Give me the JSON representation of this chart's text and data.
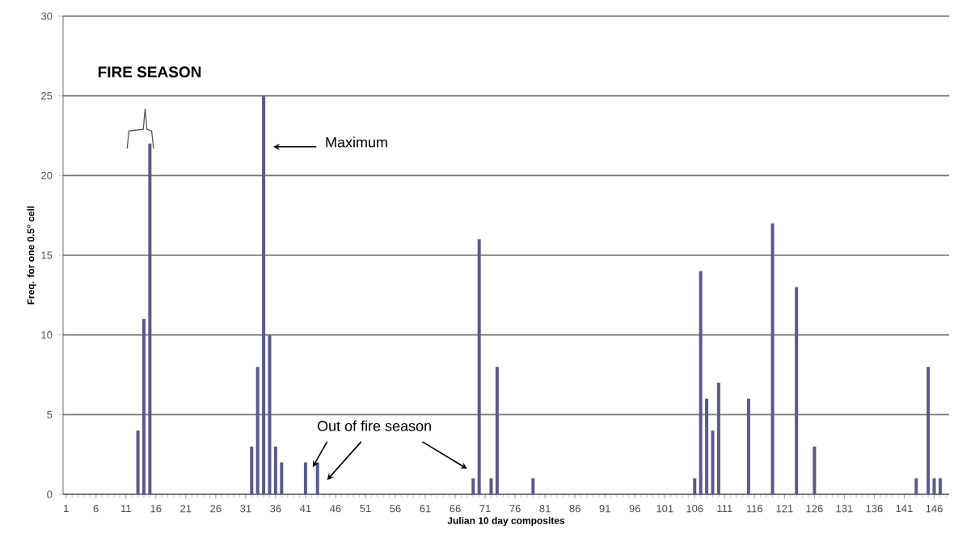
{
  "chart_data": {
    "type": "bar",
    "xlabel": "Julian 10 day composites",
    "ylabel": "Freq. for one 0.5° cell",
    "categories": [
      "1",
      null,
      null,
      null,
      null,
      "6",
      null,
      null,
      null,
      null,
      "11",
      null,
      null,
      null,
      null,
      "16",
      null,
      null,
      null,
      null,
      "21",
      null,
      null,
      null,
      null,
      "26",
      null,
      null,
      null,
      null,
      "31",
      null,
      null,
      null,
      null,
      "36",
      null,
      null,
      null,
      null,
      "41",
      null,
      null,
      null,
      null,
      "46",
      null,
      null,
      null,
      null,
      "51",
      null,
      null,
      null,
      null,
      "56",
      null,
      null,
      null,
      null,
      "61",
      null,
      null,
      null,
      null,
      "66",
      null,
      null,
      null,
      null,
      "71",
      null,
      null,
      null,
      null,
      "76",
      null,
      null,
      null,
      null,
      "81",
      null,
      null,
      null,
      null,
      "86",
      null,
      null,
      null,
      null,
      "91",
      null,
      null,
      null,
      null,
      "96",
      null,
      null,
      null,
      null,
      "101",
      null,
      null,
      null,
      null,
      "106",
      null,
      null,
      null,
      null,
      "111",
      null,
      null,
      null,
      null,
      "116",
      null,
      null,
      null,
      null,
      "121",
      null,
      null,
      null,
      null,
      "126",
      null,
      null,
      null,
      null,
      "131",
      null,
      null,
      null,
      null,
      "136",
      null,
      null,
      null,
      null,
      "141",
      null,
      null,
      null,
      null,
      "146",
      null,
      null
    ],
    "values": [
      0,
      0,
      0,
      0,
      0,
      0,
      0,
      0,
      0,
      0,
      0,
      0,
      4,
      11,
      22,
      0,
      0,
      0,
      0,
      0,
      0,
      0,
      0,
      0,
      0,
      0,
      0,
      0,
      0,
      0,
      0,
      3,
      8,
      25,
      10,
      3,
      2,
      0,
      0,
      0,
      2,
      0,
      2,
      0,
      0,
      0,
      0,
      0,
      0,
      0,
      0,
      0,
      0,
      0,
      0,
      0,
      0,
      0,
      0,
      0,
      0,
      0,
      0,
      0,
      0,
      0,
      0,
      0,
      1,
      16,
      0,
      1,
      8,
      0,
      0,
      0,
      0,
      0,
      1,
      0,
      0,
      0,
      0,
      0,
      0,
      0,
      0,
      0,
      0,
      0,
      0,
      0,
      0,
      0,
      0,
      0,
      0,
      0,
      0,
      0,
      0,
      0,
      0,
      0,
      0,
      1,
      14,
      6,
      4,
      7,
      0,
      0,
      0,
      0,
      6,
      0,
      0,
      0,
      17,
      0,
      0,
      0,
      13,
      0,
      0,
      3,
      0,
      0,
      0,
      0,
      0,
      0,
      0,
      0,
      0,
      0,
      0,
      0,
      0,
      0,
      0,
      0,
      1,
      0,
      8,
      1,
      1,
      0
    ],
    "color": "#5a5a8c",
    "ylim": [
      0,
      30
    ],
    "yticks": [
      0,
      5,
      10,
      15,
      20,
      25,
      30
    ],
    "grid": "y",
    "annotations": [
      "FIRE  SEASON",
      "Maximum",
      "Out of fire season"
    ]
  }
}
